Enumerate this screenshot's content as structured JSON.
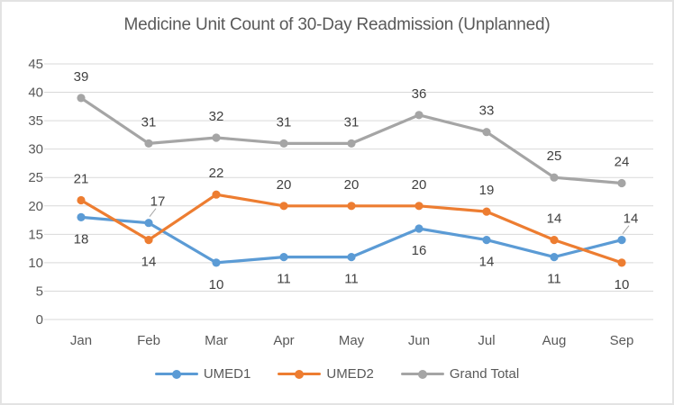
{
  "chart_data": {
    "type": "line",
    "title": "Medicine Unit Count of 30-Day Readmission (Unplanned)",
    "categories": [
      "Jan",
      "Feb",
      "Mar",
      "Apr",
      "May",
      "Jun",
      "Jul",
      "Aug",
      "Sep"
    ],
    "series": [
      {
        "name": "UMED1",
        "color": "#5B9BD5",
        "values": [
          18,
          17,
          10,
          11,
          11,
          16,
          14,
          11,
          14
        ],
        "label_positions": [
          "below",
          "leader",
          "below",
          "below",
          "below",
          "below",
          "below",
          "below",
          "leader"
        ]
      },
      {
        "name": "UMED2",
        "color": "#ED7D31",
        "values": [
          21,
          14,
          22,
          20,
          20,
          20,
          19,
          14,
          10
        ],
        "label_positions": [
          "above",
          "below",
          "above",
          "above",
          "above",
          "above",
          "above",
          "above",
          "below"
        ]
      },
      {
        "name": "Grand Total",
        "color": "#A5A5A5",
        "values": [
          39,
          31,
          32,
          31,
          31,
          36,
          33,
          25,
          24
        ],
        "label_positions": [
          "above",
          "above",
          "above",
          "above",
          "above",
          "above",
          "above",
          "above",
          "above"
        ]
      }
    ],
    "y_ticks": [
      0,
      5,
      10,
      15,
      20,
      25,
      30,
      35,
      40,
      45
    ],
    "ylim": [
      0,
      45
    ],
    "grid": true,
    "legend_position": "bottom",
    "xlabel": "",
    "ylabel": "",
    "colors": {
      "grid": "#D9D9D9",
      "axis_text": "#595959",
      "data_label": "#404040",
      "title": "#595959",
      "leader_line": "#A6A6A6",
      "background": "#FFFFFF"
    }
  }
}
